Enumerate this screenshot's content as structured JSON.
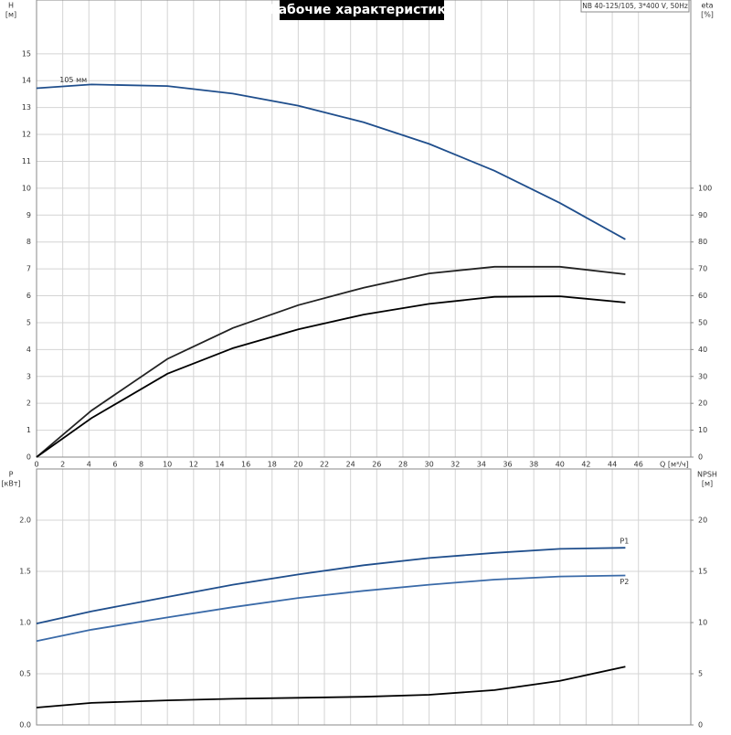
{
  "chart_data": [
    {
      "type": "line",
      "title": "Рабочие характеристики",
      "subtitle": "NB 40-125/105, 3*400 V, 50Hz",
      "ylabel": "H",
      "yunit": "[м]",
      "y2label": "eta",
      "y2unit": "[%]",
      "xlabel": "Q [м³/ч]",
      "x": [
        0,
        4.2,
        10,
        15,
        20,
        25,
        30,
        35,
        40,
        45
      ],
      "xlim": [
        0,
        50
      ],
      "xticks": [
        0,
        2,
        4,
        6,
        8,
        10,
        12,
        14,
        16,
        18,
        20,
        22,
        24,
        26,
        28,
        30,
        32,
        34,
        36,
        38,
        40,
        42,
        44,
        46
      ],
      "ylim": [
        0,
        17
      ],
      "yticks": [
        0,
        1,
        2,
        3,
        4,
        5,
        6,
        7,
        8,
        9,
        10,
        11,
        12,
        13,
        14,
        15
      ],
      "y2lim": [
        0,
        170
      ],
      "y2ticks": [
        0,
        10,
        20,
        30,
        40,
        50,
        60,
        70,
        80,
        90,
        100
      ],
      "grid": true,
      "series": [
        {
          "name": "105 мм",
          "color": "#1f4e8c",
          "values": [
            13.72,
            13.86,
            13.8,
            13.52,
            13.07,
            12.45,
            11.65,
            10.65,
            9.45,
            8.1
          ]
        },
        {
          "color": "#222222",
          "axis": "y2",
          "values": [
            0,
            17.3,
            36.5,
            48,
            56.5,
            63,
            68.3,
            70.8,
            70.8,
            68
          ]
        },
        {
          "color": "#000000",
          "axis": "y2",
          "values": [
            0,
            14.5,
            31,
            40.5,
            47.5,
            53,
            57,
            59.6,
            59.8,
            57.5
          ]
        }
      ]
    },
    {
      "type": "line",
      "ylabel": "P",
      "yunit": "[кВт]",
      "y2label": "NPSH",
      "y2unit": "[м]",
      "x": [
        0,
        4.2,
        10,
        15,
        20,
        25,
        30,
        35,
        40,
        45
      ],
      "xlim": [
        0,
        50
      ],
      "ylim": [
        0,
        2.5
      ],
      "yticks": [
        {
          "value": 0,
          "label": "0.0"
        },
        {
          "value": 0.5,
          "label": "0.5"
        },
        {
          "value": 1,
          "label": "1.0"
        },
        {
          "value": 1.5,
          "label": "1.5"
        },
        {
          "value": 2,
          "label": "2.0"
        }
      ],
      "y2lim": [
        0,
        25
      ],
      "y2ticks": [
        0,
        5,
        10,
        15,
        20
      ],
      "grid": true,
      "series": [
        {
          "name": "P1",
          "color": "#1f4e8c",
          "values": [
            0.99,
            1.11,
            1.25,
            1.37,
            1.47,
            1.56,
            1.63,
            1.68,
            1.72,
            1.73
          ]
        },
        {
          "name": "P2",
          "color": "#3a6aa8",
          "values": [
            0.82,
            0.93,
            1.05,
            1.15,
            1.24,
            1.31,
            1.37,
            1.42,
            1.45,
            1.46
          ]
        },
        {
          "color": "#000000",
          "axis": "y2",
          "values": [
            1.7,
            2.15,
            2.4,
            2.55,
            2.65,
            2.75,
            2.95,
            3.4,
            4.3,
            5.7
          ]
        }
      ]
    }
  ]
}
